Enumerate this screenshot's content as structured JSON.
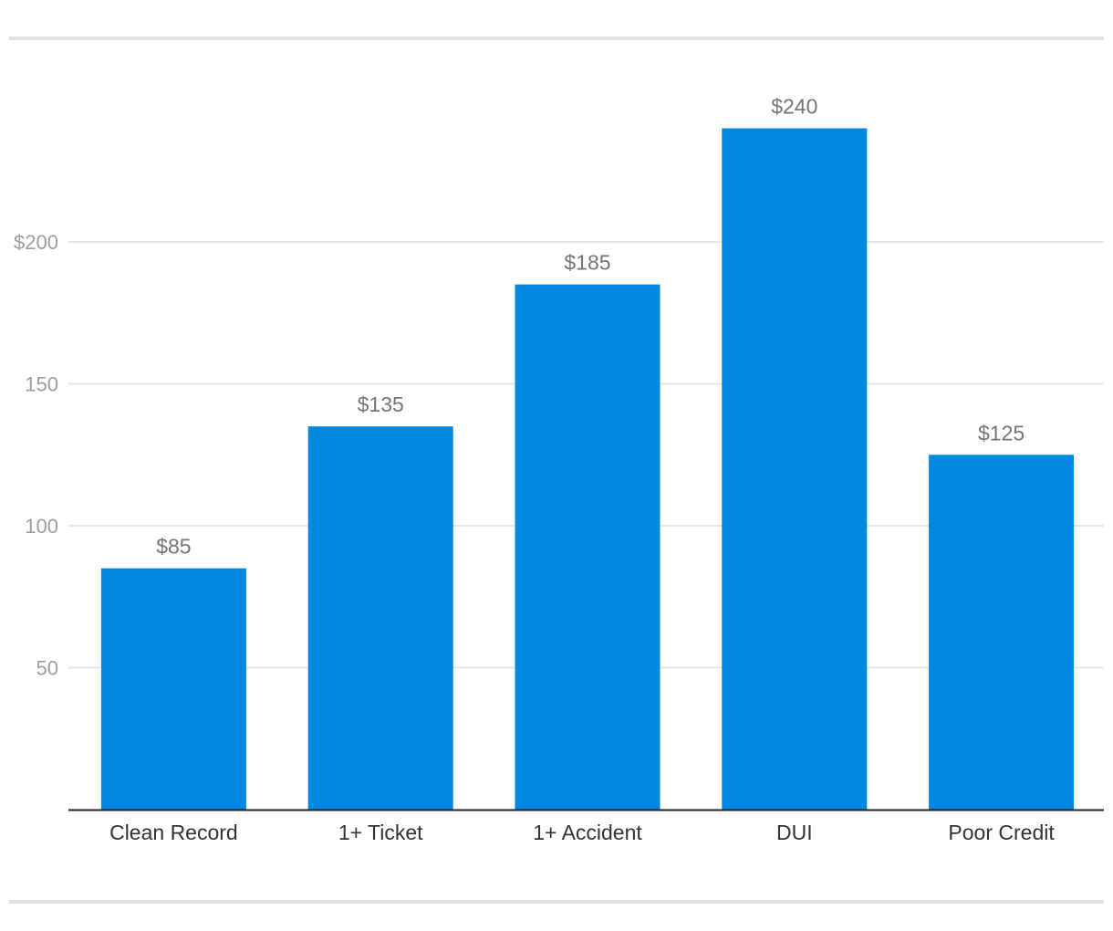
{
  "chart_data": {
    "type": "bar",
    "categories": [
      "Clean Record",
      "1+ Ticket",
      "1+ Accident",
      "DUI",
      "Poor Credit"
    ],
    "values": [
      85,
      135,
      185,
      240,
      125
    ],
    "value_labels": [
      "$85",
      "$135",
      "$185",
      "$240",
      "$125"
    ],
    "title": "",
    "xlabel": "",
    "ylabel": "",
    "ylim": [
      0,
      250
    ],
    "y_ticks": [
      {
        "value": 50,
        "label": "50"
      },
      {
        "value": 100,
        "label": "100"
      },
      {
        "value": 150,
        "label": "150"
      },
      {
        "value": 200,
        "label": "$200"
      }
    ],
    "grid": true,
    "legend": "none"
  },
  "colors": {
    "bar": "#0288de",
    "grid": "#e6e6e6",
    "axis": "#222222",
    "rule": "#e2e2e2"
  }
}
